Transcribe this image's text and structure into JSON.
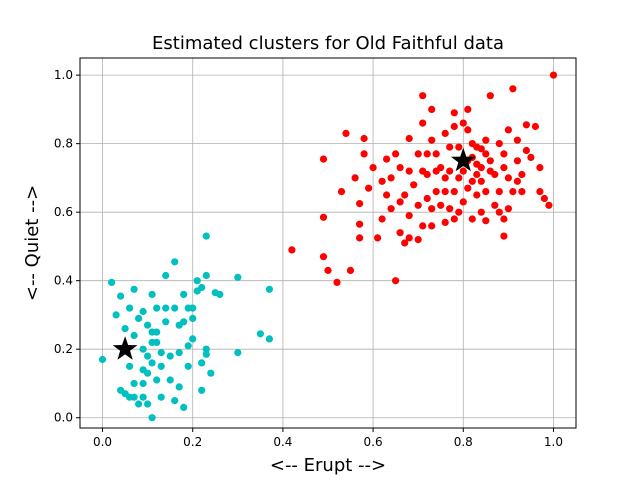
{
  "chart_data": {
    "type": "scatter",
    "title": "Estimated clusters for Old Faithful data",
    "xlabel": "<-- Erupt -->",
    "ylabel": "<-- Quiet -->",
    "xlim": [
      -0.05,
      1.05
    ],
    "ylim": [
      -0.03,
      1.05
    ],
    "xticks": [
      0.0,
      0.2,
      0.4,
      0.6,
      0.8,
      1.0
    ],
    "yticks": [
      0.0,
      0.2,
      0.4,
      0.6,
      0.8,
      1.0
    ],
    "xtick_labels": [
      "0.0",
      "0.2",
      "0.4",
      "0.6",
      "0.8",
      "1.0"
    ],
    "ytick_labels": [
      "0.0",
      "0.2",
      "0.4",
      "0.6",
      "0.8",
      "1.0"
    ],
    "grid": true,
    "series": [
      {
        "color": "#00bfbf",
        "points": [
          [
            0.0,
            0.17
          ],
          [
            0.02,
            0.395
          ],
          [
            0.03,
            0.3
          ],
          [
            0.04,
            0.355
          ],
          [
            0.04,
            0.08
          ],
          [
            0.05,
            0.07
          ],
          [
            0.05,
            0.26
          ],
          [
            0.05,
            0.2
          ],
          [
            0.06,
            0.15
          ],
          [
            0.06,
            0.32
          ],
          [
            0.06,
            0.06
          ],
          [
            0.07,
            0.24
          ],
          [
            0.07,
            0.1
          ],
          [
            0.07,
            0.06
          ],
          [
            0.07,
            0.375
          ],
          [
            0.08,
            0.29
          ],
          [
            0.08,
            0.04
          ],
          [
            0.09,
            0.2
          ],
          [
            0.09,
            0.14
          ],
          [
            0.09,
            0.31
          ],
          [
            0.09,
            0.1
          ],
          [
            0.09,
            0.06
          ],
          [
            0.1,
            0.13
          ],
          [
            0.1,
            0.27
          ],
          [
            0.1,
            0.18
          ],
          [
            0.1,
            0.04
          ],
          [
            0.11,
            0.36
          ],
          [
            0.11,
            0.25
          ],
          [
            0.11,
            0.22
          ],
          [
            0.11,
            0.16
          ],
          [
            0.11,
            0.0
          ],
          [
            0.12,
            0.32
          ],
          [
            0.12,
            0.25
          ],
          [
            0.12,
            0.22
          ],
          [
            0.12,
            0.11
          ],
          [
            0.13,
            0.15
          ],
          [
            0.13,
            0.19
          ],
          [
            0.13,
            0.06
          ],
          [
            0.14,
            0.415
          ],
          [
            0.14,
            0.32
          ],
          [
            0.14,
            0.28
          ],
          [
            0.15,
            0.18
          ],
          [
            0.15,
            0.11
          ],
          [
            0.16,
            0.455
          ],
          [
            0.16,
            0.32
          ],
          [
            0.16,
            0.05
          ],
          [
            0.17,
            0.19
          ],
          [
            0.17,
            0.09
          ],
          [
            0.17,
            0.27
          ],
          [
            0.18,
            0.36
          ],
          [
            0.18,
            0.28
          ],
          [
            0.18,
            0.03
          ],
          [
            0.19,
            0.32
          ],
          [
            0.19,
            0.21
          ],
          [
            0.19,
            0.15
          ],
          [
            0.2,
            0.32
          ],
          [
            0.2,
            0.29
          ],
          [
            0.2,
            0.23
          ],
          [
            0.21,
            0.4
          ],
          [
            0.21,
            0.37
          ],
          [
            0.22,
            0.08
          ],
          [
            0.22,
            0.16
          ],
          [
            0.22,
            0.38
          ],
          [
            0.23,
            0.53
          ],
          [
            0.23,
            0.415
          ],
          [
            0.23,
            0.2
          ],
          [
            0.23,
            0.185
          ],
          [
            0.24,
            0.13
          ],
          [
            0.25,
            0.365
          ],
          [
            0.26,
            0.36
          ],
          [
            0.3,
            0.41
          ],
          [
            0.3,
            0.19
          ],
          [
            0.35,
            0.245
          ],
          [
            0.37,
            0.375
          ],
          [
            0.37,
            0.23
          ]
        ]
      },
      {
        "color": "#ff0000",
        "points": [
          [
            0.42,
            0.49
          ],
          [
            0.49,
            0.755
          ],
          [
            0.49,
            0.585
          ],
          [
            0.49,
            0.47
          ],
          [
            0.5,
            0.43
          ],
          [
            0.52,
            0.395
          ],
          [
            0.53,
            0.66
          ],
          [
            0.54,
            0.83
          ],
          [
            0.55,
            0.43
          ],
          [
            0.56,
            0.7
          ],
          [
            0.57,
            0.565
          ],
          [
            0.57,
            0.525
          ],
          [
            0.57,
            0.625
          ],
          [
            0.58,
            0.77
          ],
          [
            0.58,
            0.815
          ],
          [
            0.59,
            0.67
          ],
          [
            0.6,
            0.73
          ],
          [
            0.61,
            0.525
          ],
          [
            0.62,
            0.69
          ],
          [
            0.62,
            0.58
          ],
          [
            0.63,
            0.755
          ],
          [
            0.63,
            0.65
          ],
          [
            0.64,
            0.61
          ],
          [
            0.64,
            0.7
          ],
          [
            0.65,
            0.77
          ],
          [
            0.65,
            0.4
          ],
          [
            0.66,
            0.73
          ],
          [
            0.66,
            0.54
          ],
          [
            0.66,
            0.63
          ],
          [
            0.67,
            0.51
          ],
          [
            0.67,
            0.65
          ],
          [
            0.68,
            0.815
          ],
          [
            0.68,
            0.59
          ],
          [
            0.68,
            0.72
          ],
          [
            0.68,
            0.525
          ],
          [
            0.69,
            0.68
          ],
          [
            0.7,
            0.77
          ],
          [
            0.7,
            0.62
          ],
          [
            0.7,
            0.52
          ],
          [
            0.71,
            0.94
          ],
          [
            0.71,
            0.86
          ],
          [
            0.71,
            0.72
          ],
          [
            0.71,
            0.56
          ],
          [
            0.72,
            0.77
          ],
          [
            0.72,
            0.71
          ],
          [
            0.72,
            0.64
          ],
          [
            0.73,
            0.9
          ],
          [
            0.73,
            0.81
          ],
          [
            0.73,
            0.61
          ],
          [
            0.73,
            0.56
          ],
          [
            0.74,
            0.77
          ],
          [
            0.74,
            0.72
          ],
          [
            0.74,
            0.66
          ],
          [
            0.75,
            0.73
          ],
          [
            0.75,
            0.62
          ],
          [
            0.76,
            0.83
          ],
          [
            0.76,
            0.66
          ],
          [
            0.76,
            0.7
          ],
          [
            0.76,
            0.57
          ],
          [
            0.77,
            0.72
          ],
          [
            0.77,
            0.79
          ],
          [
            0.77,
            0.61
          ],
          [
            0.78,
            0.89
          ],
          [
            0.78,
            0.85
          ],
          [
            0.78,
            0.66
          ],
          [
            0.78,
            0.58
          ],
          [
            0.79,
            0.79
          ],
          [
            0.79,
            0.7
          ],
          [
            0.79,
            0.6
          ],
          [
            0.8,
            0.86
          ],
          [
            0.8,
            0.72
          ],
          [
            0.8,
            0.63
          ],
          [
            0.81,
            0.9
          ],
          [
            0.81,
            0.84
          ],
          [
            0.81,
            0.75
          ],
          [
            0.81,
            0.67
          ],
          [
            0.82,
            0.8
          ],
          [
            0.82,
            0.76
          ],
          [
            0.82,
            0.69
          ],
          [
            0.82,
            0.58
          ],
          [
            0.83,
            0.74
          ],
          [
            0.83,
            0.79
          ],
          [
            0.83,
            0.71
          ],
          [
            0.83,
            0.65
          ],
          [
            0.84,
            0.785
          ],
          [
            0.84,
            0.73
          ],
          [
            0.84,
            0.69
          ],
          [
            0.84,
            0.6
          ],
          [
            0.85,
            0.81
          ],
          [
            0.85,
            0.77
          ],
          [
            0.85,
            0.66
          ],
          [
            0.85,
            0.575
          ],
          [
            0.86,
            0.94
          ],
          [
            0.86,
            0.72
          ],
          [
            0.86,
            0.75
          ],
          [
            0.87,
            0.71
          ],
          [
            0.87,
            0.62
          ],
          [
            0.88,
            0.8
          ],
          [
            0.88,
            0.66
          ],
          [
            0.88,
            0.6
          ],
          [
            0.89,
            0.73
          ],
          [
            0.89,
            0.77
          ],
          [
            0.89,
            0.58
          ],
          [
            0.89,
            0.53
          ],
          [
            0.9,
            0.84
          ],
          [
            0.9,
            0.7
          ],
          [
            0.9,
            0.61
          ],
          [
            0.91,
            0.96
          ],
          [
            0.91,
            0.66
          ],
          [
            0.92,
            0.75
          ],
          [
            0.92,
            0.81
          ],
          [
            0.92,
            0.69
          ],
          [
            0.93,
            0.71
          ],
          [
            0.93,
            0.66
          ],
          [
            0.94,
            0.855
          ],
          [
            0.94,
            0.78
          ],
          [
            0.95,
            0.76
          ],
          [
            0.96,
            0.85
          ],
          [
            0.97,
            0.66
          ],
          [
            0.97,
            0.73
          ],
          [
            0.98,
            0.64
          ],
          [
            0.99,
            0.62
          ],
          [
            1.0,
            1.0
          ]
        ]
      }
    ],
    "centroids": [
      [
        0.05,
        0.2
      ],
      [
        0.8,
        0.75
      ]
    ]
  }
}
